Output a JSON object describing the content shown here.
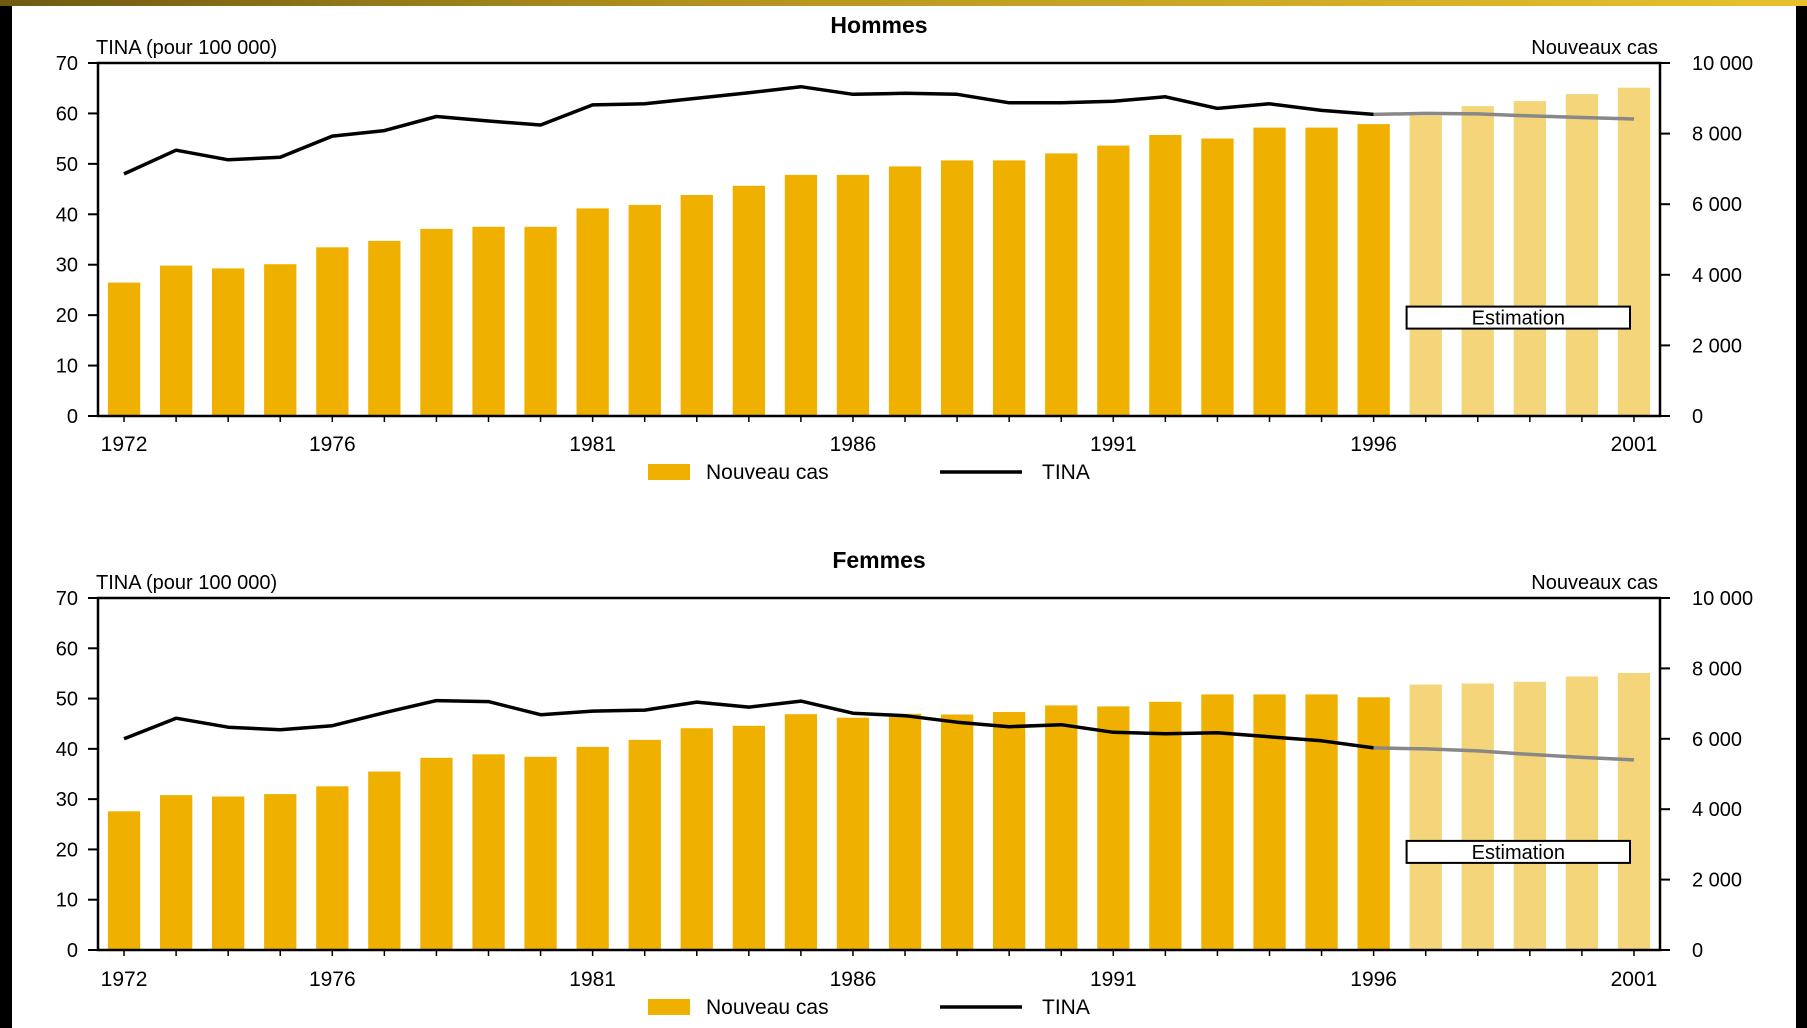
{
  "chart_data": [
    {
      "type": "bar",
      "title": "Hommes",
      "ylabel_left": "TINA (pour 100 000)",
      "ylabel_right": "Nouveaux cas",
      "left_ticks": [
        "0",
        "10",
        "20",
        "30",
        "40",
        "50",
        "60",
        "70"
      ],
      "right_ticks": [
        "0",
        "2 000",
        "4 000",
        "6 000",
        "8 000",
        "10 000"
      ],
      "xtick_labels": [
        "1972",
        "1976",
        "1981",
        "1986",
        "1991",
        "1996",
        "2001"
      ],
      "ylim_left": [
        0,
        70
      ],
      "ylim_right": [
        0,
        10000
      ],
      "estimation_label": "Estimation",
      "estimation_from_year": 1997,
      "years": [
        1972,
        1973,
        1974,
        1975,
        1976,
        1977,
        1978,
        1979,
        1980,
        1981,
        1982,
        1983,
        1984,
        1985,
        1986,
        1987,
        1988,
        1989,
        1990,
        1991,
        1992,
        1993,
        1994,
        1995,
        1996,
        1997,
        1998,
        1999,
        2000,
        2001
      ],
      "series": [
        {
          "name": "Nouveau cas",
          "axis": "right",
          "kind": "bar",
          "values": [
            3780,
            4260,
            4180,
            4300,
            4780,
            4960,
            5300,
            5360,
            5360,
            5880,
            5980,
            6260,
            6520,
            6830,
            6830,
            7070,
            7240,
            7240,
            7440,
            7660,
            7960,
            7860,
            8170,
            8170,
            8270,
            8510,
            8780,
            8920,
            9120,
            9300
          ]
        },
        {
          "name": "TINA",
          "axis": "left",
          "kind": "line",
          "values": [
            48.0,
            52.7,
            50.8,
            51.3,
            55.5,
            56.6,
            59.4,
            58.5,
            57.7,
            61.7,
            61.9,
            63.0,
            64.1,
            65.3,
            63.8,
            64.0,
            63.8,
            62.1,
            62.1,
            62.4,
            63.3,
            61.0,
            61.9,
            60.6,
            59.8,
            60.0,
            59.9,
            59.5,
            59.2,
            58.9
          ]
        }
      ],
      "legend": [
        {
          "label": "Nouveau cas",
          "color": "#f0b000"
        },
        {
          "label": "TINA",
          "color": "#000000"
        }
      ]
    },
    {
      "type": "bar",
      "title": "Femmes",
      "ylabel_left": "TINA (pour 100 000)",
      "ylabel_right": "Nouveaux cas",
      "left_ticks": [
        "0",
        "10",
        "20",
        "30",
        "40",
        "50",
        "60",
        "70"
      ],
      "right_ticks": [
        "0",
        "2 000",
        "4 000",
        "6 000",
        "8 000",
        "10 000"
      ],
      "xtick_labels": [
        "1972",
        "1976",
        "1981",
        "1986",
        "1991",
        "1996",
        "2001"
      ],
      "ylim_left": [
        0,
        70
      ],
      "ylim_right": [
        0,
        10000
      ],
      "estimation_label": "Estimation",
      "estimation_from_year": 1997,
      "years": [
        1972,
        1973,
        1974,
        1975,
        1976,
        1977,
        1978,
        1979,
        1980,
        1981,
        1982,
        1983,
        1984,
        1985,
        1986,
        1987,
        1988,
        1989,
        1990,
        1991,
        1992,
        1993,
        1994,
        1995,
        1996,
        1997,
        1998,
        1999,
        2000,
        2001
      ],
      "series": [
        {
          "name": "Nouveau cas",
          "axis": "right",
          "kind": "bar",
          "values": [
            3940,
            4400,
            4360,
            4430,
            4650,
            5070,
            5460,
            5560,
            5490,
            5770,
            5970,
            6300,
            6370,
            6700,
            6600,
            6710,
            6690,
            6760,
            6950,
            6920,
            7050,
            7260,
            7260,
            7260,
            7180,
            7540,
            7570,
            7620,
            7770,
            7870
          ]
        },
        {
          "name": "TINA",
          "axis": "left",
          "kind": "line",
          "values": [
            42.0,
            46.1,
            44.3,
            43.8,
            44.6,
            47.2,
            49.6,
            49.4,
            46.8,
            47.5,
            47.7,
            49.3,
            48.3,
            49.5,
            47.1,
            46.6,
            45.3,
            44.4,
            44.8,
            43.3,
            43.0,
            43.2,
            42.4,
            41.6,
            40.2,
            40.0,
            39.6,
            38.9,
            38.3,
            37.8
          ]
        }
      ],
      "legend": [
        {
          "label": "Nouveau cas",
          "color": "#f0b000"
        },
        {
          "label": "TINA",
          "color": "#000000"
        }
      ]
    }
  ],
  "colors": {
    "bar": "#f0b000",
    "bar_estimate": "#f5d57a",
    "line": "#000000",
    "line_estimate": "#888888"
  }
}
